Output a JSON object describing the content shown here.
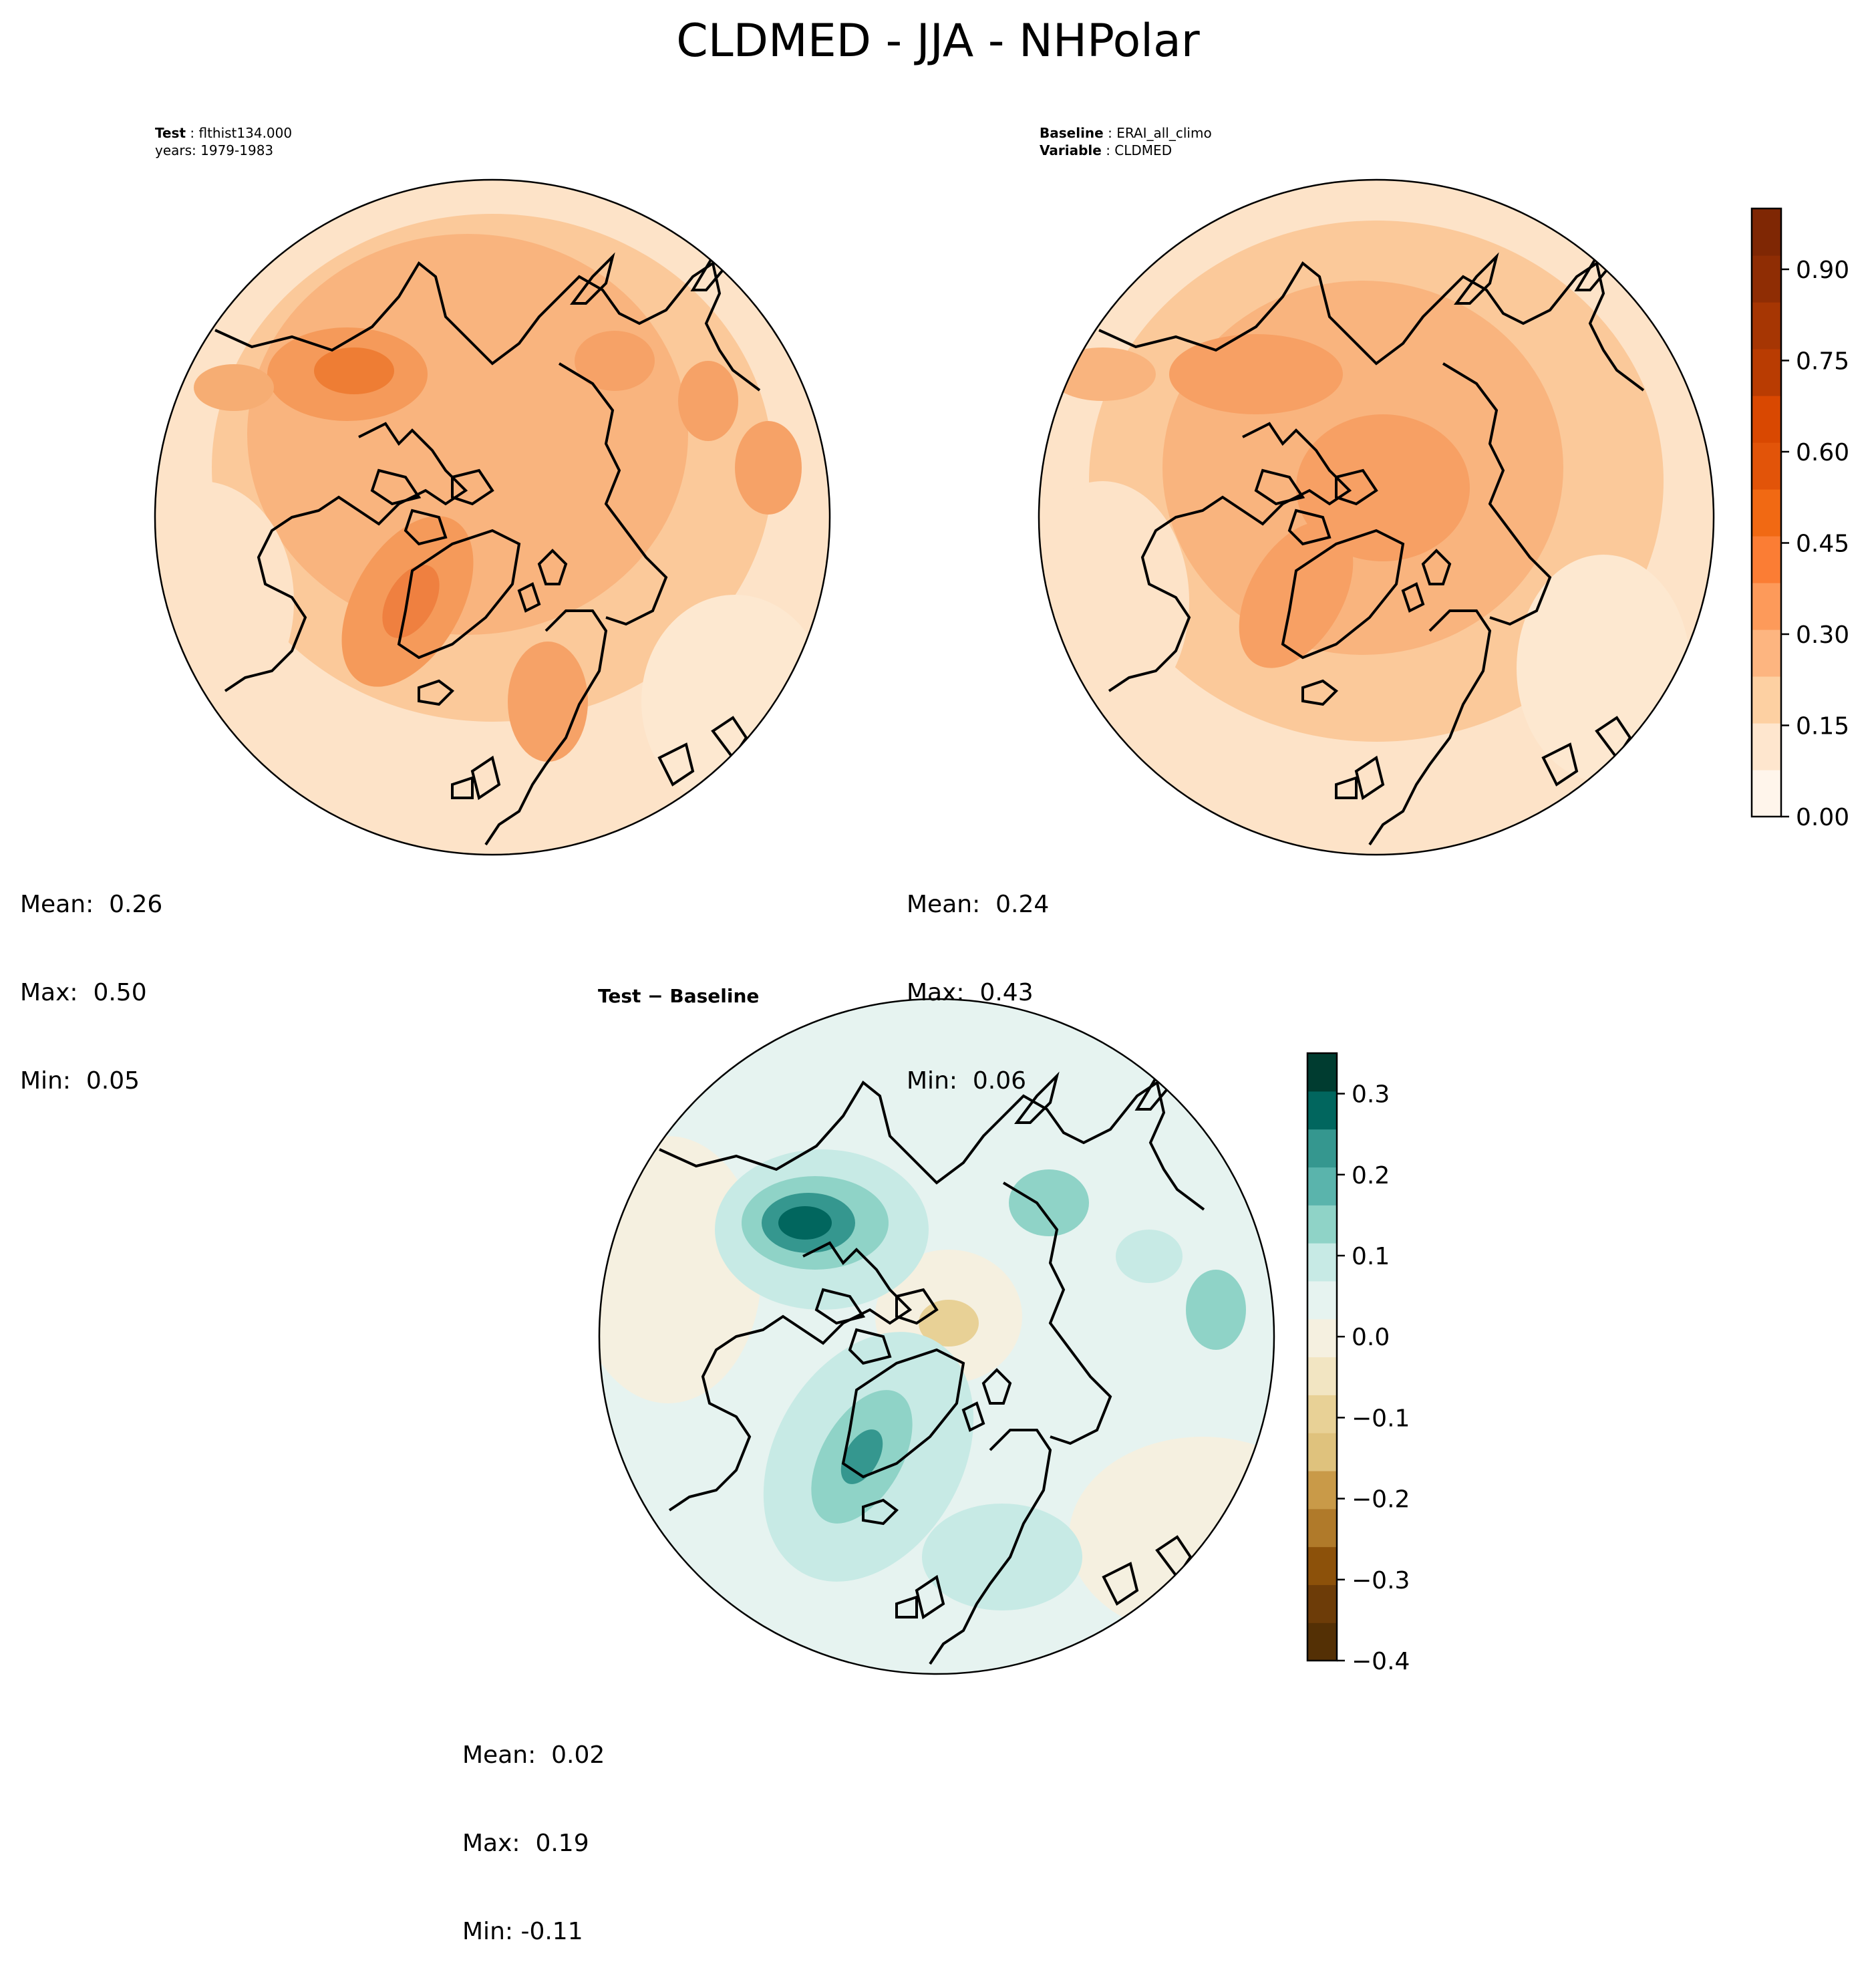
{
  "title": "CLDMED - JJA - NHPolar",
  "panels": {
    "test": {
      "label_key": "Test",
      "label_value": "flthist134.000",
      "years": "years: 1979-1983",
      "mean": "Mean:  0.26",
      "max": "Max:  0.50",
      "min": "Min:  0.05"
    },
    "baseline": {
      "label_key": "Baseline",
      "label_value": "ERAI_all_climo",
      "variable_key": "Variable",
      "variable_value": "CLDMED",
      "mean": "Mean:  0.24",
      "max": "Max:  0.43",
      "min": "Min:  0.06"
    },
    "diff": {
      "title": "Test − Baseline",
      "mean": "Mean:  0.02",
      "max": "Max:  0.19",
      "min": "Min: -0.11"
    }
  },
  "chart_data": [
    {
      "type": "heatmap",
      "title": "Test",
      "projection": "north polar stereographic",
      "summary": {
        "mean": 0.26,
        "max": 0.5,
        "min": 0.05
      }
    },
    {
      "type": "heatmap",
      "title": "Baseline",
      "projection": "north polar stereographic",
      "summary": {
        "mean": 0.24,
        "max": 0.43,
        "min": 0.06
      },
      "colorbar": {
        "cmap": "Oranges",
        "range": [
          0.0,
          1.0
        ],
        "ticks": [
          "0.00",
          "0.15",
          "0.30",
          "0.45",
          "0.60",
          "0.75",
          "0.90"
        ],
        "colors": [
          "#fff5eb",
          "#fee6ce",
          "#fdd0a2",
          "#fdb580",
          "#fd9a5a",
          "#fb7d34",
          "#f16913",
          "#e25409",
          "#d94801",
          "#b93c02",
          "#a63603",
          "#8f2d04",
          "#7f2704"
        ]
      }
    },
    {
      "type": "heatmap",
      "title": "Test − Baseline",
      "projection": "north polar stereographic",
      "summary": {
        "mean": 0.02,
        "max": 0.19,
        "min": -0.11
      },
      "colorbar": {
        "cmap": "BrBG",
        "range": [
          -0.4,
          0.35
        ],
        "ticks": [
          "0.3",
          "0.2",
          "0.1",
          "0.0",
          "−0.1",
          "−0.2",
          "−0.3",
          "−0.4"
        ],
        "colors": [
          "#003c30",
          "#01665e",
          "#35978f",
          "#5ab4ac",
          "#8fd3c7",
          "#c7eae5",
          "#e6f3f0",
          "#f5f0e0",
          "#f2e5c2",
          "#e8d196",
          "#dfc27d",
          "#c99a48",
          "#b07a2a",
          "#8c510a",
          "#6d3c08",
          "#543005"
        ]
      }
    }
  ]
}
